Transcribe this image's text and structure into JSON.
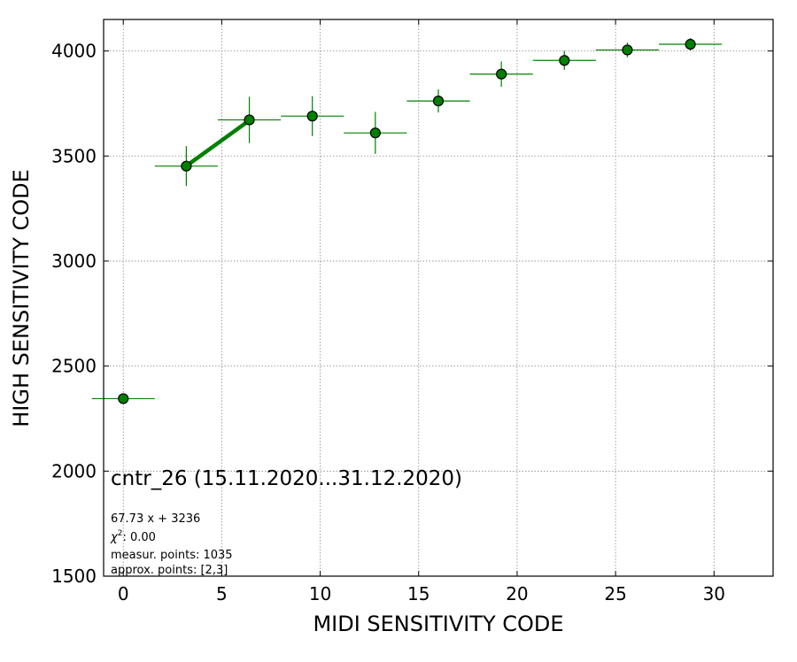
{
  "chart_data": {
    "type": "scatter",
    "title": "cntr_26 (15.11.2020...31.12.2020)",
    "xlabel": "MIDI SENSITIVITY CODE",
    "ylabel": "HIGH SENSITIVITY CODE",
    "xlim": [
      -1,
      33
    ],
    "ylim": [
      1500,
      4150
    ],
    "xticks": [
      0,
      5,
      10,
      15,
      20,
      25,
      30
    ],
    "yticks": [
      1500,
      2000,
      2500,
      3000,
      3500,
      4000
    ],
    "grid": true,
    "colors": {
      "marker": "#008000",
      "errorbar": "#008000",
      "fit": "#008000"
    },
    "points": [
      {
        "x": 0,
        "y": 2345,
        "xerr": 1.6,
        "yerr": 0
      },
      {
        "x": 3.2,
        "y": 3452,
        "xerr": 1.6,
        "yerr": 95
      },
      {
        "x": 6.4,
        "y": 3672,
        "xerr": 1.6,
        "yerr": 110
      },
      {
        "x": 9.6,
        "y": 3690,
        "xerr": 1.6,
        "yerr": 95
      },
      {
        "x": 12.8,
        "y": 3610,
        "xerr": 1.6,
        "yerr": 100
      },
      {
        "x": 16.0,
        "y": 3762,
        "xerr": 1.6,
        "yerr": 55
      },
      {
        "x": 19.2,
        "y": 3890,
        "xerr": 1.6,
        "yerr": 60
      },
      {
        "x": 22.4,
        "y": 3955,
        "xerr": 1.6,
        "yerr": 45
      },
      {
        "x": 25.6,
        "y": 4005,
        "xerr": 1.6,
        "yerr": 35
      },
      {
        "x": 28.8,
        "y": 4032,
        "xerr": 1.6,
        "yerr": 30
      }
    ],
    "fit": {
      "slope": 67.73,
      "intercept": 3236,
      "x_range": [
        3.2,
        6.4
      ]
    },
    "annotations": {
      "equation": "67.73 x + 3236",
      "chi2_label": "χ",
      "chi2_sup": "2",
      "chi2_value": ": 0.00",
      "measur_points": "measur. points: 1035",
      "approx_points": "approx. points: [2,3]"
    }
  }
}
